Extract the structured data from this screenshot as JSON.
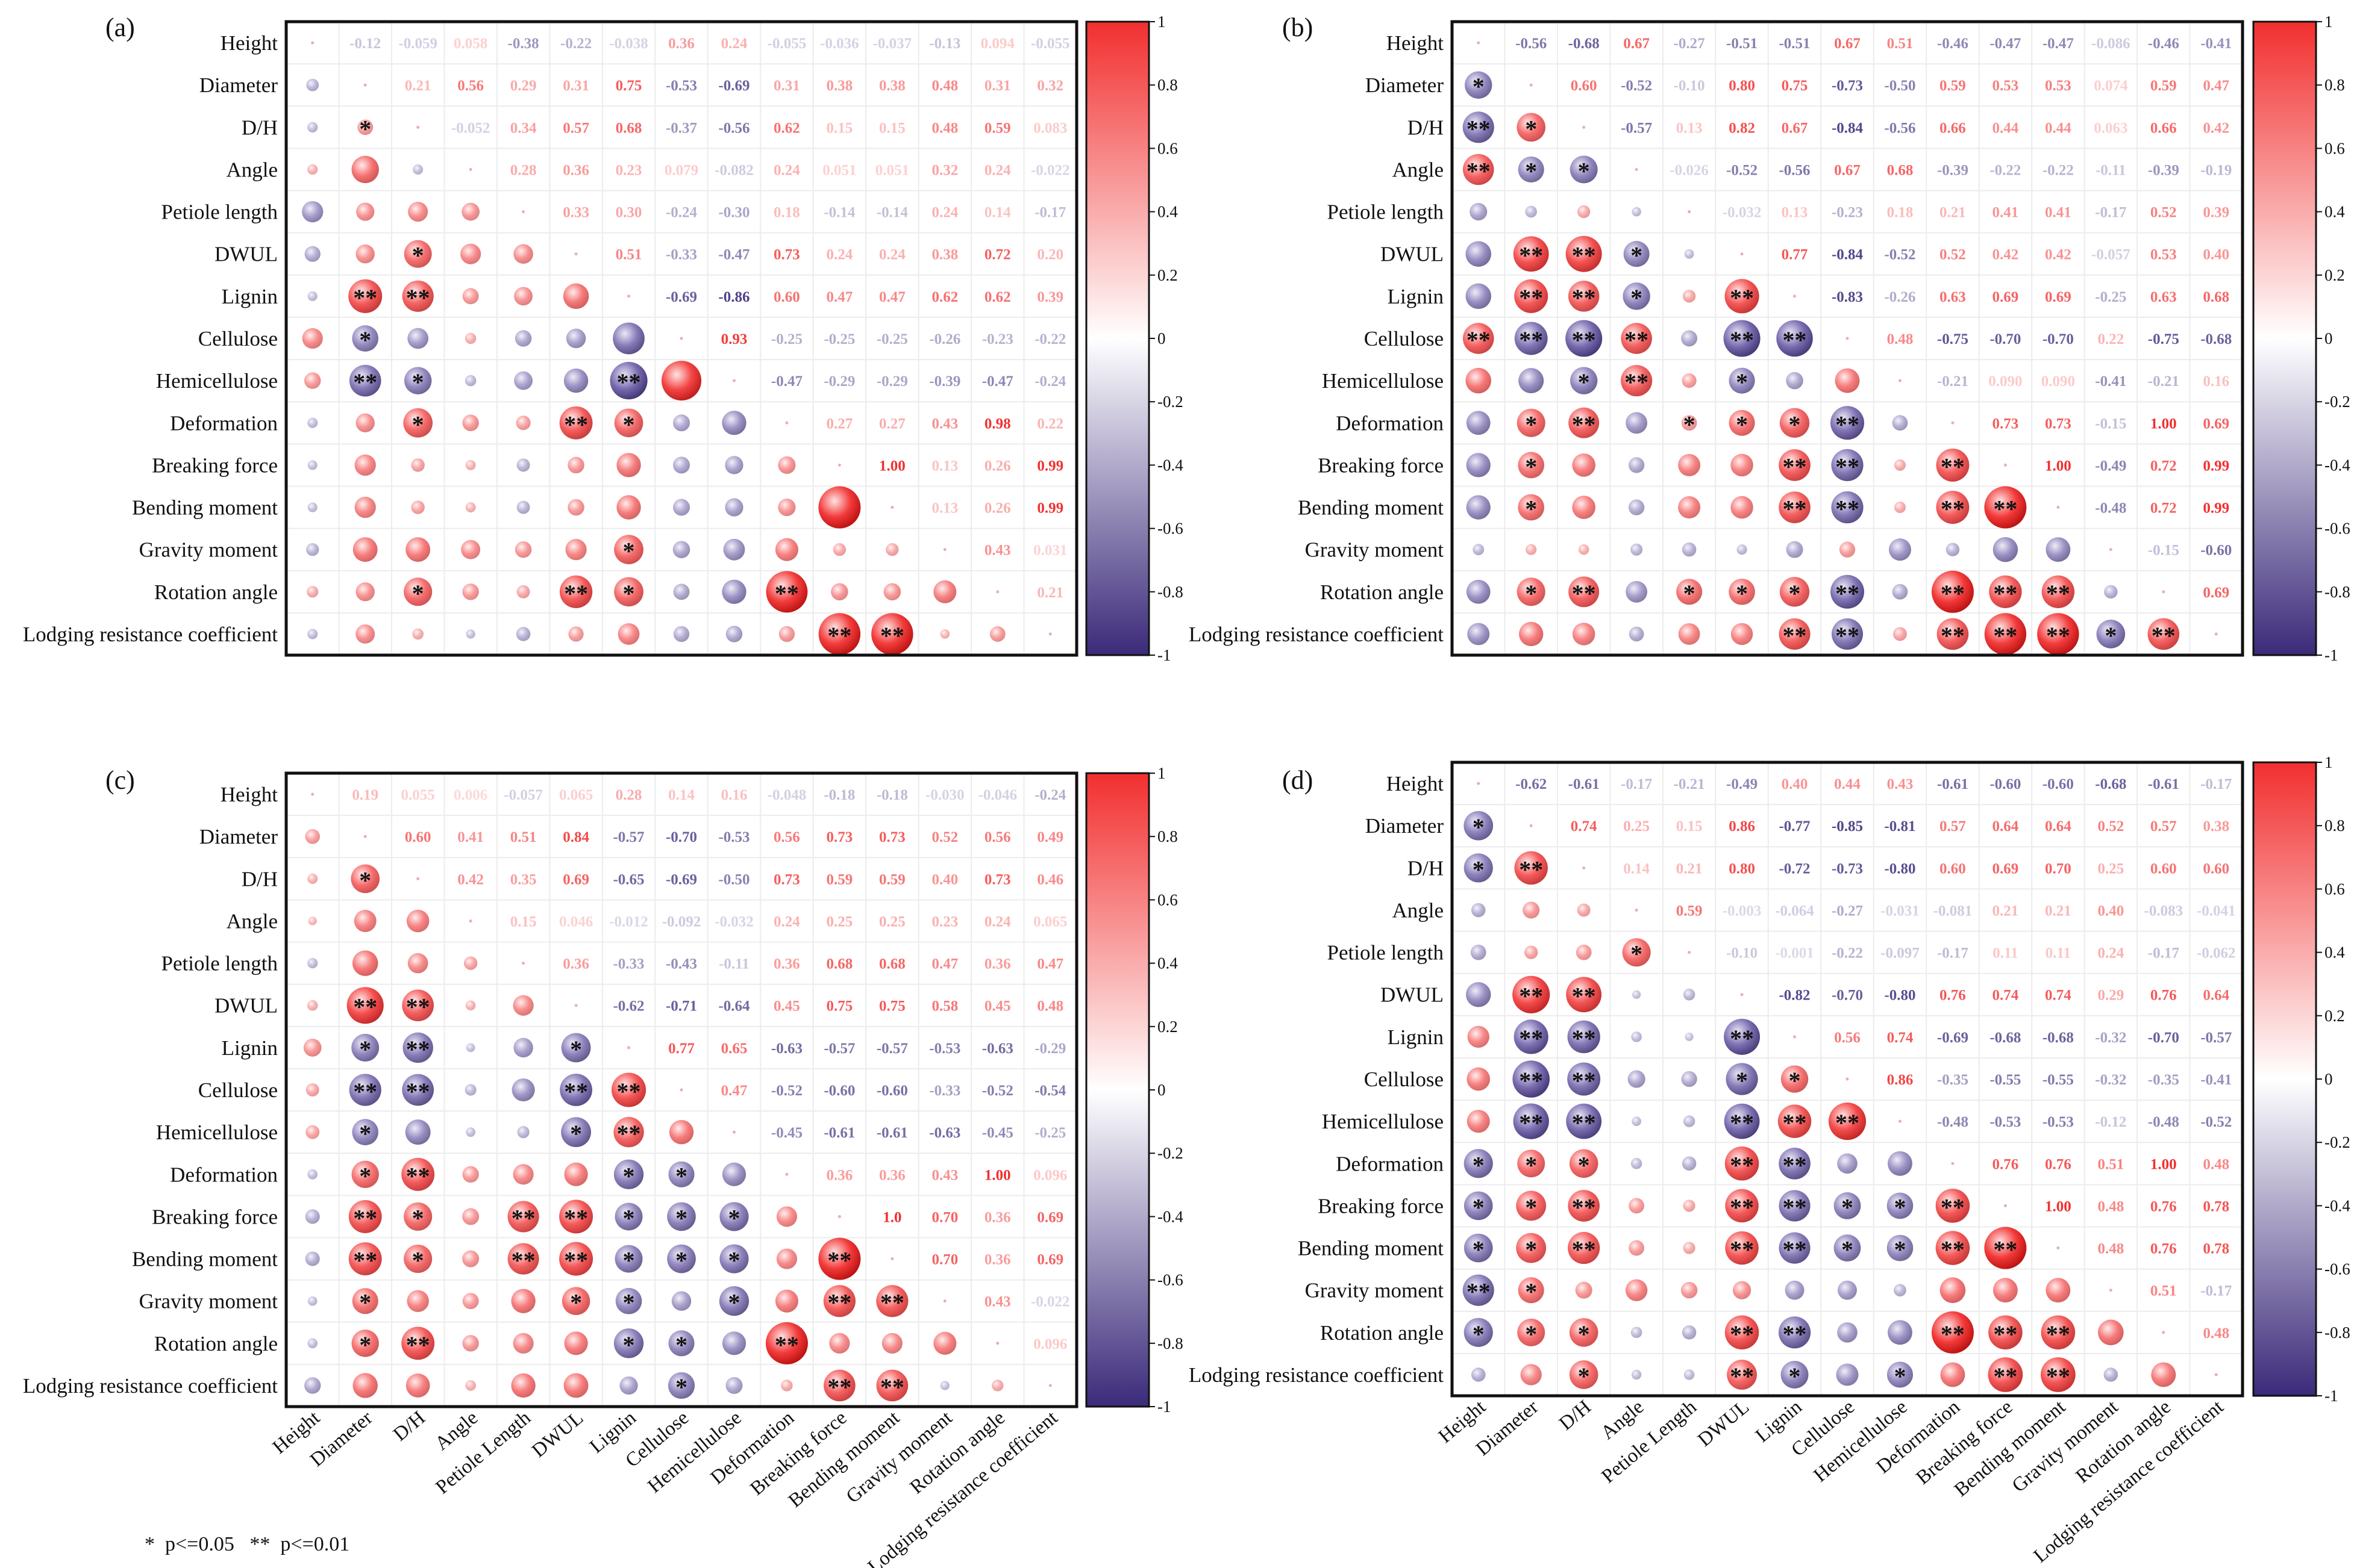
{
  "chart_data": [
    {
      "type": "heatmap",
      "panel_label": "(a)",
      "variables": [
        "Height",
        "Diameter",
        "D/H",
        "Angle",
        "Petiole  length",
        "DWUL",
        "Lignin",
        "Cellulose",
        "Hemicellulose",
        "Deformation",
        "Breaking force",
        "Bending moment",
        "Gravity moment",
        "Rotation angle",
        "Lodging resistance coefficient"
      ],
      "upper": [
        [
          "-0.12",
          "-0.059",
          "0.058",
          "-0.38",
          "-0.22",
          "-0.038",
          "0.36",
          "0.24",
          "-0.055",
          "-0.036",
          "-0.037",
          "-0.13",
          "0.094",
          "-0.055"
        ],
        [
          "0.21",
          "0.56",
          "0.29",
          "0.31",
          "0.75",
          "-0.53",
          "-0.69",
          "0.31",
          "0.38",
          "0.38",
          "0.48",
          "0.31",
          "0.32"
        ],
        [
          "-0.052",
          "0.34",
          "0.57",
          "0.68",
          "-0.37",
          "-0.56",
          "0.62",
          "0.15",
          "0.15",
          "0.48",
          "0.59",
          "0.083"
        ],
        [
          "0.28",
          "0.36",
          "0.23",
          "0.079",
          "-0.082",
          "0.24",
          "0.051",
          "0.051",
          "0.32",
          "0.24",
          "-0.022"
        ],
        [
          "0.33",
          "0.30",
          "-0.24",
          "-0.30",
          "0.18",
          "-0.14",
          "-0.14",
          "0.24",
          "0.14",
          "-0.17"
        ],
        [
          "0.51",
          "-0.33",
          "-0.47",
          "0.73",
          "0.24",
          "0.24",
          "0.38",
          "0.72",
          "0.20"
        ],
        [
          "-0.69",
          "-0.86",
          "0.60",
          "0.47",
          "0.47",
          "0.62",
          "0.62",
          "0.39"
        ],
        [
          "0.93",
          "-0.25",
          "-0.25",
          "-0.25",
          "-0.26",
          "-0.23",
          "-0.22"
        ],
        [
          "-0.47",
          "-0.29",
          "-0.29",
          "-0.39",
          "-0.47",
          "-0.24"
        ],
        [
          "0.27",
          "0.27",
          "0.43",
          "0.98",
          "0.22"
        ],
        [
          "1.00",
          "0.13",
          "0.26",
          "0.99"
        ],
        [
          "0.13",
          "0.26",
          "0.99"
        ],
        [
          "0.43",
          "0.031"
        ],
        [
          "0.21"
        ]
      ],
      "lower_sig": [
        [
          ""
        ],
        [
          "",
          "*"
        ],
        [
          "",
          "",
          ""
        ],
        [
          "",
          "",
          "",
          ""
        ],
        [
          "",
          "",
          "*",
          "",
          "",
          ""
        ],
        [
          "",
          "**",
          "**",
          "",
          "",
          "",
          ""
        ],
        [
          "",
          "*",
          "",
          "",
          "",
          "",
          ""
        ],
        [
          "",
          "**",
          "*",
          "",
          "",
          "",
          "**",
          ""
        ],
        [
          "",
          "",
          "*",
          "",
          "",
          "**",
          "*",
          "",
          ""
        ],
        [
          "",
          "",
          "",
          "",
          "",
          "",
          "",
          "",
          "",
          ""
        ],
        [
          "",
          "",
          "",
          "",
          "",
          "",
          "",
          "",
          "",
          "",
          ""
        ],
        [
          "",
          "",
          "",
          "",
          "",
          "",
          "*",
          "",
          "",
          "",
          "",
          ""
        ],
        [
          "",
          "",
          "*",
          "",
          "",
          "**",
          "*",
          "",
          "",
          "**",
          "",
          "",
          ""
        ],
        [
          "",
          "",
          "",
          "",
          "",
          "",
          "",
          "",
          "",
          "",
          "**",
          "**",
          "",
          ""
        ]
      ],
      "colorbar_ticks": [
        "1",
        "0.8",
        "0.6",
        "0.4",
        "0.2",
        "0",
        "-0.2",
        "-0.4",
        "-0.6",
        "-0.8",
        "-1"
      ],
      "colors": {
        "positive": "#f22f2f",
        "negative": "#3b2a7a",
        "zero": "#ffffff"
      }
    },
    {
      "type": "heatmap",
      "panel_label": "(b)",
      "variables": [
        "Height",
        "Diameter",
        "D/H",
        "Angle",
        "Petiole  length",
        "DWUL",
        "Lignin",
        "Cellulose",
        "Hemicellulose",
        "Deformation",
        "Breaking force",
        "Bending moment",
        "Gravity moment",
        "Rotation angle",
        "Lodging resistance coefficient"
      ],
      "upper": [
        [
          "-0.56",
          "-0.68",
          "0.67",
          "-0.27",
          "-0.51",
          "-0.51",
          "0.67",
          "0.51",
          "-0.46",
          "-0.47",
          "-0.47",
          "-0.086",
          "-0.46",
          "-0.41"
        ],
        [
          "0.60",
          "-0.52",
          "-0.10",
          "0.80",
          "0.75",
          "-0.73",
          "-0.50",
          "0.59",
          "0.53",
          "0.53",
          "0.074",
          "0.59",
          "0.47"
        ],
        [
          "-0.57",
          "0.13",
          "0.82",
          "0.67",
          "-0.84",
          "-0.56",
          "0.66",
          "0.44",
          "0.44",
          "0.063",
          "0.66",
          "0.42"
        ],
        [
          "-0.026",
          "-0.52",
          "-0.56",
          "0.67",
          "0.68",
          "-0.39",
          "-0.22",
          "-0.22",
          "-0.11",
          "-0.39",
          "-0.19"
        ],
        [
          "-0.032",
          "0.13",
          "-0.23",
          "0.18",
          "0.21",
          "0.41",
          "0.41",
          "-0.17",
          "0.52",
          "0.39"
        ],
        [
          "0.77",
          "-0.84",
          "-0.52",
          "0.52",
          "0.42",
          "0.42",
          "-0.057",
          "0.53",
          "0.40"
        ],
        [
          "-0.83",
          "-0.26",
          "0.63",
          "0.69",
          "0.69",
          "-0.25",
          "0.63",
          "0.68"
        ],
        [
          "0.48",
          "-0.75",
          "-0.70",
          "-0.70",
          "0.22",
          "-0.75",
          "-0.68"
        ],
        [
          "-0.21",
          "0.090",
          "0.090",
          "-0.41",
          "-0.21",
          "0.16"
        ],
        [
          "0.73",
          "0.73",
          "-0.15",
          "1.00",
          "0.69"
        ],
        [
          "1.00",
          "-0.49",
          "0.72",
          "0.99"
        ],
        [
          "-0.48",
          "0.72",
          "0.99"
        ],
        [
          "-0.15",
          "-0.60"
        ],
        [
          "0.69"
        ]
      ],
      "lower_sig": [
        [
          "*"
        ],
        [
          "**",
          "*"
        ],
        [
          "**",
          "*",
          "*"
        ],
        [
          "",
          "",
          "",
          ""
        ],
        [
          "",
          "**",
          "**",
          "*",
          ""
        ],
        [
          "",
          "**",
          "**",
          "*",
          "",
          "**"
        ],
        [
          "**",
          "**",
          "**",
          "**",
          "",
          "**",
          "**"
        ],
        [
          "",
          "",
          "*",
          "**",
          "",
          "*",
          "",
          ""
        ],
        [
          "",
          "*",
          "**",
          "",
          "*",
          "*",
          "*",
          "**",
          "",
          ""
        ],
        [
          "",
          "*",
          "",
          "",
          "",
          "",
          "**",
          "**",
          "",
          "**"
        ],
        [
          "",
          "*",
          "",
          "",
          "",
          "",
          "**",
          "**",
          "",
          "**",
          "**"
        ],
        [
          "",
          "",
          "",
          "",
          "",
          "",
          "",
          "",
          "",
          "",
          "",
          ""
        ],
        [
          "",
          "*",
          "**",
          "",
          "*",
          "*",
          "*",
          "**",
          "",
          "**",
          "**",
          "**",
          ""
        ],
        [
          "",
          "",
          "",
          "",
          "",
          "",
          "**",
          "**",
          "",
          "**",
          "**",
          "**",
          "*",
          "**"
        ]
      ],
      "colorbar_ticks": [
        "1",
        "0.8",
        "0.6",
        "0.4",
        "0.2",
        "0",
        "-0.2",
        "-0.4",
        "-0.6",
        "-0.8",
        "-1"
      ],
      "colors": {
        "positive": "#f22f2f",
        "negative": "#3b2a7a",
        "zero": "#ffffff"
      }
    },
    {
      "type": "heatmap",
      "panel_label": "(c)",
      "variables": [
        "Height",
        "Diameter",
        "D/H",
        "Angle",
        "Petiole  length",
        "DWUL",
        "Lignin",
        "Cellulose",
        "Hemicellulose",
        "Deformation",
        "Breaking force",
        "Bending moment",
        "Gravity moment",
        "Rotation angle",
        "Lodging resistance coefficient"
      ],
      "upper": [
        [
          "0.19",
          "0.055",
          "0.006",
          "-0.057",
          "0.065",
          "0.28",
          "0.14",
          "0.16",
          "-0.048",
          "-0.18",
          "-0.18",
          "-0.030",
          "-0.046",
          "-0.24"
        ],
        [
          "0.60",
          "0.41",
          "0.51",
          "0.84",
          "-0.57",
          "-0.70",
          "-0.53",
          "0.56",
          "0.73",
          "0.73",
          "0.52",
          "0.56",
          "0.49"
        ],
        [
          "0.42",
          "0.35",
          "0.69",
          "-0.65",
          "-0.69",
          "-0.50",
          "0.73",
          "0.59",
          "0.59",
          "0.40",
          "0.73",
          "0.46"
        ],
        [
          "0.15",
          "0.046",
          "-0.012",
          "-0.092",
          "-0.032",
          "0.24",
          "0.25",
          "0.25",
          "0.23",
          "0.24",
          "0.065"
        ],
        [
          "0.36",
          "-0.33",
          "-0.43",
          "-0.11",
          "0.36",
          "0.68",
          "0.68",
          "0.47",
          "0.36",
          "0.47"
        ],
        [
          "-0.62",
          "-0.71",
          "-0.64",
          "0.45",
          "0.75",
          "0.75",
          "0.58",
          "0.45",
          "0.48"
        ],
        [
          "0.77",
          "0.65",
          "-0.63",
          "-0.57",
          "-0.57",
          "-0.53",
          "-0.63",
          "-0.29"
        ],
        [
          "0.47",
          "-0.52",
          "-0.60",
          "-0.60",
          "-0.33",
          "-0.52",
          "-0.54"
        ],
        [
          "-0.45",
          "-0.61",
          "-0.61",
          "-0.63",
          "-0.45",
          "-0.25"
        ],
        [
          "0.36",
          "0.36",
          "0.43",
          "1.00",
          "0.096"
        ],
        [
          "1.0",
          "0.70",
          "0.36",
          "0.69"
        ],
        [
          "0.70",
          "0.36",
          "0.69"
        ],
        [
          "0.43",
          "-0.022"
        ],
        [
          "0.096"
        ]
      ],
      "lower_sig": [
        [
          ""
        ],
        [
          "",
          "*"
        ],
        [
          "",
          "",
          ""
        ],
        [
          "",
          "",
          "",
          ""
        ],
        [
          "",
          "**",
          "**",
          "",
          "",
          ""
        ],
        [
          "",
          "*",
          "**",
          "",
          "",
          "*",
          ""
        ],
        [
          "",
          "**",
          "**",
          "",
          "",
          "**",
          "**"
        ],
        [
          "",
          "*",
          "",
          "",
          "",
          "*",
          "**",
          ""
        ],
        [
          "",
          "*",
          "**",
          "",
          "",
          "",
          "*",
          "*",
          ""
        ],
        [
          "",
          "**",
          "*",
          "",
          "**",
          "**",
          "*",
          "*",
          "*",
          ""
        ],
        [
          "",
          "**",
          "*",
          "",
          "**",
          "**",
          "*",
          "*",
          "*",
          "",
          "**"
        ],
        [
          "",
          "*",
          "",
          "",
          "",
          "*",
          "*",
          "",
          "*",
          "",
          "**",
          "**"
        ],
        [
          "",
          "*",
          "**",
          "",
          "",
          "",
          "*",
          "*",
          "",
          "**",
          "",
          "",
          ""
        ],
        [
          "",
          "",
          "",
          "",
          "",
          "",
          "",
          "*",
          "",
          "",
          "**",
          "**",
          "",
          ""
        ]
      ],
      "colorbar_ticks": [
        "1",
        "0.8",
        "0.6",
        "0.4",
        "0.2",
        "0",
        "-0.2",
        "-0.4",
        "-0.6",
        "-0.8",
        "-1"
      ],
      "colors": {
        "positive": "#f22f2f",
        "negative": "#3b2a7a",
        "zero": "#ffffff"
      }
    },
    {
      "type": "heatmap",
      "panel_label": "(d)",
      "variables": [
        "Height",
        "Diameter",
        "D/H",
        "Angle",
        "Petiole  length",
        "DWUL",
        "Lignin",
        "Cellulose",
        "Hemicellulose",
        "Deformation",
        "Breaking force",
        "Bending moment",
        "Gravity moment",
        "Rotation angle",
        "Lodging resistance coefficient"
      ],
      "upper": [
        [
          "-0.62",
          "-0.61",
          "-0.17",
          "-0.21",
          "-0.49",
          "0.40",
          "0.44",
          "0.43",
          "-0.61",
          "-0.60",
          "-0.60",
          "-0.68",
          "-0.61",
          "-0.17"
        ],
        [
          "0.74",
          "0.25",
          "0.15",
          "0.86",
          "-0.77",
          "-0.85",
          "-0.81",
          "0.57",
          "0.64",
          "0.64",
          "0.52",
          "0.57",
          "0.38"
        ],
        [
          "0.14",
          "0.21",
          "0.80",
          "-0.72",
          "-0.73",
          "-0.80",
          "0.60",
          "0.69",
          "0.70",
          "0.25",
          "0.60",
          "0.60"
        ],
        [
          "0.59",
          "-0.003",
          "-0.064",
          "-0.27",
          "-0.031",
          "-0.081",
          "0.21",
          "0.21",
          "0.40",
          "-0.083",
          "-0.041"
        ],
        [
          "-0.10",
          "-0.001",
          "-0.22",
          "-0.097",
          "-0.17",
          "0.11",
          "0.11",
          "0.24",
          "-0.17",
          "-0.062"
        ],
        [
          "-0.82",
          "-0.70",
          "-0.80",
          "0.76",
          "0.74",
          "0.74",
          "0.29",
          "0.76",
          "0.64"
        ],
        [
          "0.56",
          "0.74",
          "-0.69",
          "-0.68",
          "-0.68",
          "-0.32",
          "-0.70",
          "-0.57"
        ],
        [
          "0.86",
          "-0.35",
          "-0.55",
          "-0.55",
          "-0.32",
          "-0.35",
          "-0.41"
        ],
        [
          "-0.48",
          "-0.53",
          "-0.53",
          "-0.12",
          "-0.48",
          "-0.52"
        ],
        [
          "0.76",
          "0.76",
          "0.51",
          "1.00",
          "0.48"
        ],
        [
          "1.00",
          "0.48",
          "0.76",
          "0.78"
        ],
        [
          "0.48",
          "0.76",
          "0.78"
        ],
        [
          "0.51",
          "-0.17"
        ],
        [
          "0.48"
        ]
      ],
      "lower_sig": [
        [
          "*"
        ],
        [
          "*",
          "**"
        ],
        [
          "",
          "",
          ""
        ],
        [
          "",
          "",
          "",
          "*"
        ],
        [
          "",
          "**",
          "**",
          "",
          "",
          ""
        ],
        [
          "",
          "**",
          "**",
          "",
          "",
          "**"
        ],
        [
          "",
          "**",
          "**",
          "",
          "",
          "*",
          "*"
        ],
        [
          "",
          "**",
          "**",
          "",
          "",
          "**",
          "**",
          "**"
        ],
        [
          "*",
          "*",
          "*",
          "",
          "",
          "**",
          "**",
          "",
          "",
          ""
        ],
        [
          "*",
          "*",
          "**",
          "",
          "",
          "**",
          "**",
          "*",
          "*",
          "**"
        ],
        [
          "*",
          "*",
          "**",
          "",
          "",
          "**",
          "**",
          "*",
          "*",
          "**",
          "**"
        ],
        [
          "**",
          "*",
          "",
          "",
          "",
          "",
          "",
          "",
          "",
          "",
          "",
          ""
        ],
        [
          "*",
          "*",
          "*",
          "",
          "",
          "**",
          "**",
          "",
          "",
          "**",
          "**",
          "**",
          ""
        ],
        [
          "",
          "",
          "*",
          "",
          "",
          "**",
          "*",
          "",
          "*",
          "",
          "**",
          "**",
          "",
          ""
        ]
      ],
      "colorbar_ticks": [
        "1",
        "0.8",
        "0.6",
        "0.4",
        "0.2",
        "0",
        "-0.2",
        "-0.4",
        "-0.6",
        "-0.8",
        "-1"
      ],
      "colors": {
        "positive": "#f22f2f",
        "negative": "#3b2a7a",
        "zero": "#ffffff"
      }
    }
  ],
  "x_axis_labels": [
    "Height",
    "Diameter",
    "D/H",
    "Angle",
    "Petiole Length",
    "DWUL",
    "Lignin",
    "Cellulose",
    "Hemicellulose",
    "Deformation",
    "Breaking force",
    "Bending moment",
    "Gravity moment",
    "Rotation angle",
    "Lodging resistance coefficient"
  ],
  "footnote": "*  p<=0.05   **  p<=0.01"
}
